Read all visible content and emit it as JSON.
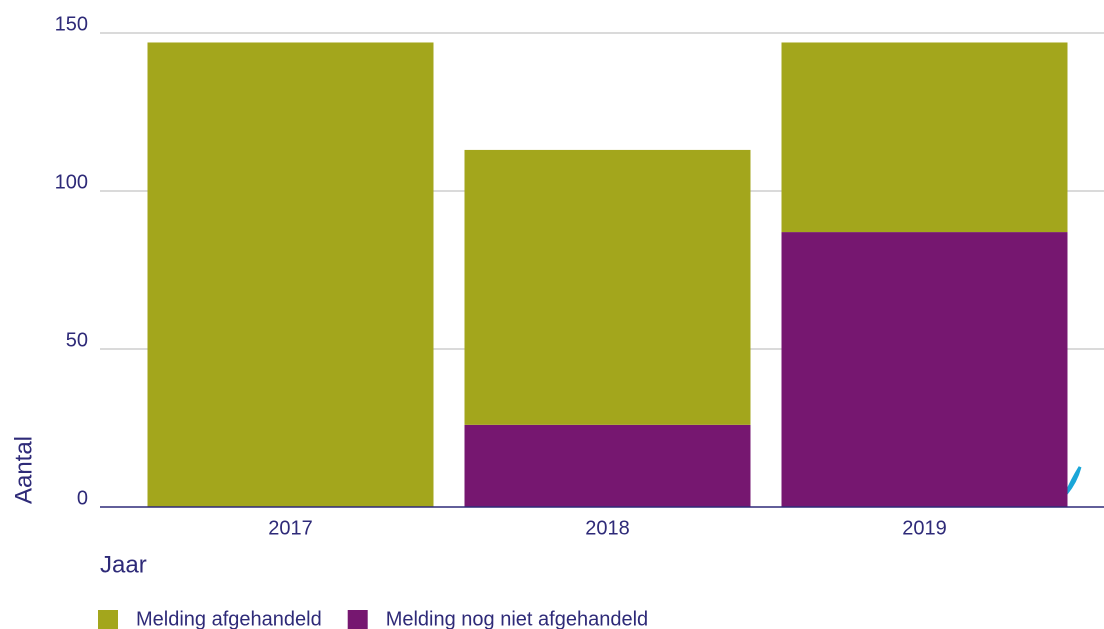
{
  "chart_data": {
    "type": "stacked_bar",
    "categories": [
      "2017",
      "2018",
      "2019"
    ],
    "series": [
      {
        "name": "Melding afgehandeld",
        "color": "#a3a61c",
        "values": [
          147,
          87,
          60
        ]
      },
      {
        "name": "Melding nog niet afgehandeld",
        "color": "#761770",
        "values": [
          0,
          26,
          87
        ]
      }
    ],
    "ylabel": "Aantal",
    "xlabel": "Jaar",
    "ylim": [
      0,
      150
    ],
    "yticks": [
      0,
      50,
      100,
      150
    ],
    "grid": true
  }
}
